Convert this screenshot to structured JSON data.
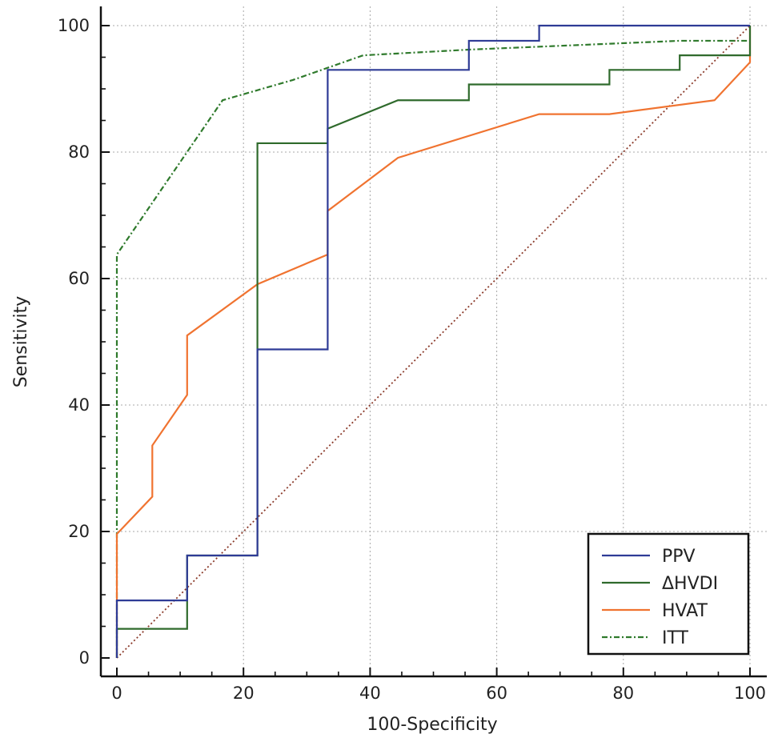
{
  "chart_data": {
    "type": "line",
    "title": "",
    "xlabel": "100-Specificity",
    "ylabel": "Sensitivity",
    "xlim": [
      0,
      100
    ],
    "ylim": [
      0,
      100
    ],
    "x_ticks": [
      0,
      20,
      40,
      60,
      80,
      100
    ],
    "y_ticks": [
      0,
      20,
      40,
      60,
      80,
      100
    ],
    "x_tick_labels": [
      "0",
      "20",
      "40",
      "60",
      "80",
      "100"
    ],
    "y_tick_labels": [
      "0",
      "20",
      "40",
      "60",
      "80",
      "100"
    ],
    "grid": true,
    "legend_position": "bottom-right",
    "series": [
      {
        "name": "PPV",
        "color": "#2e3b96",
        "style": "solid",
        "points": [
          [
            0,
            0
          ],
          [
            0,
            9.1
          ],
          [
            11.1,
            9.1
          ],
          [
            11.1,
            16.2
          ],
          [
            22.2,
            16.2
          ],
          [
            22.2,
            48.8
          ],
          [
            33.3,
            48.8
          ],
          [
            33.3,
            93
          ],
          [
            55.6,
            93
          ],
          [
            55.6,
            97.6
          ],
          [
            66.7,
            97.6
          ],
          [
            66.7,
            100
          ],
          [
            100,
            100
          ]
        ]
      },
      {
        "name": "ΔHVDI",
        "color": "#2f6a2c",
        "style": "solid",
        "points": [
          [
            0,
            0
          ],
          [
            0,
            4.6
          ],
          [
            11.1,
            4.6
          ],
          [
            11.1,
            16.2
          ],
          [
            22.2,
            16.2
          ],
          [
            22.2,
            81.4
          ],
          [
            33.3,
            81.4
          ],
          [
            33.3,
            83.7
          ],
          [
            44.4,
            88.2
          ],
          [
            55.6,
            88.2
          ],
          [
            55.6,
            90.7
          ],
          [
            77.8,
            90.7
          ],
          [
            77.8,
            93
          ],
          [
            88.9,
            93
          ],
          [
            88.9,
            95.3
          ],
          [
            100,
            95.3
          ],
          [
            100,
            100
          ]
        ]
      },
      {
        "name": "HVAT",
        "color": "#f07330",
        "style": "solid",
        "points": [
          [
            0,
            0
          ],
          [
            0,
            19.6
          ],
          [
            5.6,
            25.5
          ],
          [
            5.6,
            33.6
          ],
          [
            11.1,
            41.6
          ],
          [
            11.1,
            51
          ],
          [
            22.2,
            59.1
          ],
          [
            33.3,
            63.8
          ],
          [
            33.3,
            70.7
          ],
          [
            44.4,
            79.1
          ],
          [
            66.7,
            86
          ],
          [
            77.8,
            86
          ],
          [
            94.4,
            88.2
          ],
          [
            100,
            94.2
          ],
          [
            100,
            100
          ]
        ]
      },
      {
        "name": "ITT",
        "color": "#2f7a2c",
        "style": "dashdot",
        "points": [
          [
            0,
            0
          ],
          [
            0,
            63.8
          ],
          [
            16.7,
            88.2
          ],
          [
            27.8,
            91.4
          ],
          [
            38.9,
            95.3
          ],
          [
            55.6,
            96.2
          ],
          [
            88.9,
            97.6
          ],
          [
            100,
            97.6
          ]
        ]
      }
    ],
    "reference_line": {
      "color": "#8b3a2a",
      "style": "dotted",
      "points": [
        [
          0,
          0
        ],
        [
          100,
          100
        ]
      ]
    }
  }
}
